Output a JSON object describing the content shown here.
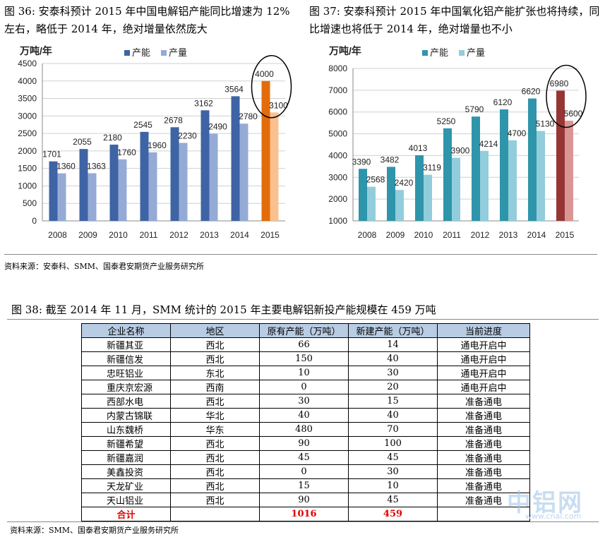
{
  "caption36": "图 36:    安泰科预计 2015 年中国电解铝产能同比增速为 12%左右，略低于 2014 年，绝对增量依然庞大",
  "caption37": "图 37:    安泰科预计 2015 年中国氧化铝产能扩张也将持续，同比增速也将低于 2014 年，绝对增量也不小",
  "source1": "资料来源：安泰科、SMM、国泰君安期货产业服务研究所",
  "caption38": "图 38:    截至 2014 年 11 月，SMM 统计的 2015 年主要电解铝新投产能规模在 459 万吨",
  "source2": "资料来源：SMM、国泰君安期货产业服务研究所",
  "watermark": "中铝网",
  "watermark_url": "www.cnal.com",
  "chart_data": [
    {
      "type": "bar",
      "unit_label": "万吨/年",
      "categories": [
        "2008",
        "2009",
        "2010",
        "2011",
        "2012",
        "2013",
        "2014",
        "2015"
      ],
      "series": [
        {
          "name": "产能",
          "values": [
            1701,
            2055,
            2180,
            2545,
            2678,
            3162,
            3564,
            4000
          ],
          "color": "#3e64a5",
          "highlight_color": "#e36c0a"
        },
        {
          "name": "产量",
          "values": [
            1360,
            1363,
            1760,
            1960,
            2230,
            2490,
            2780,
            3100
          ],
          "color": "#95abd6",
          "highlight_color": "#fac08f"
        }
      ],
      "ylim": [
        0,
        4500
      ],
      "yticks": [
        0,
        500,
        1000,
        1500,
        2000,
        2500,
        3000,
        3500,
        4000,
        4500
      ],
      "grid": true,
      "legend": "top",
      "highlight_category": "2015"
    },
    {
      "type": "bar",
      "unit_label": "万吨/年",
      "categories": [
        "2008",
        "2009",
        "2010",
        "2011",
        "2012",
        "2013",
        "2014",
        "2015"
      ],
      "series": [
        {
          "name": "产能",
          "values": [
            3390,
            3482,
            4013,
            5250,
            5790,
            6120,
            6620,
            6980
          ],
          "color": "#2e95ab",
          "highlight_color": "#963634"
        },
        {
          "name": "产量",
          "values": [
            2568,
            2420,
            3119,
            3900,
            4214,
            4700,
            5130,
            5600
          ],
          "color": "#92cddc",
          "highlight_color": "#d99694"
        }
      ],
      "ylim": [
        1000,
        8000
      ],
      "yticks": [
        1000,
        2000,
        3000,
        4000,
        5000,
        6000,
        7000,
        8000
      ],
      "grid": true,
      "legend": "top",
      "highlight_category": "2015"
    }
  ],
  "table": {
    "headers": [
      "企业名称",
      "地区",
      "原有产能（万吨）",
      "新建产能（万吨）",
      "当前进度"
    ],
    "rows": [
      [
        "新疆其亚",
        "西北",
        "66",
        "14",
        "通电开启中"
      ],
      [
        "新疆信发",
        "西北",
        "150",
        "40",
        "通电开启中"
      ],
      [
        "忠旺铝业",
        "东北",
        "10",
        "30",
        "通电开启中"
      ],
      [
        "重庆京宏源",
        "西南",
        "0",
        "20",
        "通电开启中"
      ],
      [
        "西部水电",
        "西北",
        "30",
        "15",
        "准备通电"
      ],
      [
        "内蒙古锦联",
        "华北",
        "40",
        "40",
        "准备通电"
      ],
      [
        "山东魏桥",
        "华东",
        "480",
        "70",
        "准备通电"
      ],
      [
        "新疆希望",
        "西北",
        "90",
        "100",
        "准备通电"
      ],
      [
        "新疆嘉润",
        "西北",
        "45",
        "45",
        "准备通电"
      ],
      [
        "美鑫投资",
        "西北",
        "0",
        "30",
        "准备通电"
      ],
      [
        "天龙矿业",
        "西北",
        "15",
        "10",
        "准备通电"
      ],
      [
        "天山铝业",
        "西北",
        "90",
        "45",
        "准备通电"
      ]
    ],
    "total": [
      "合计",
      "",
      "1016",
      "459",
      ""
    ]
  }
}
